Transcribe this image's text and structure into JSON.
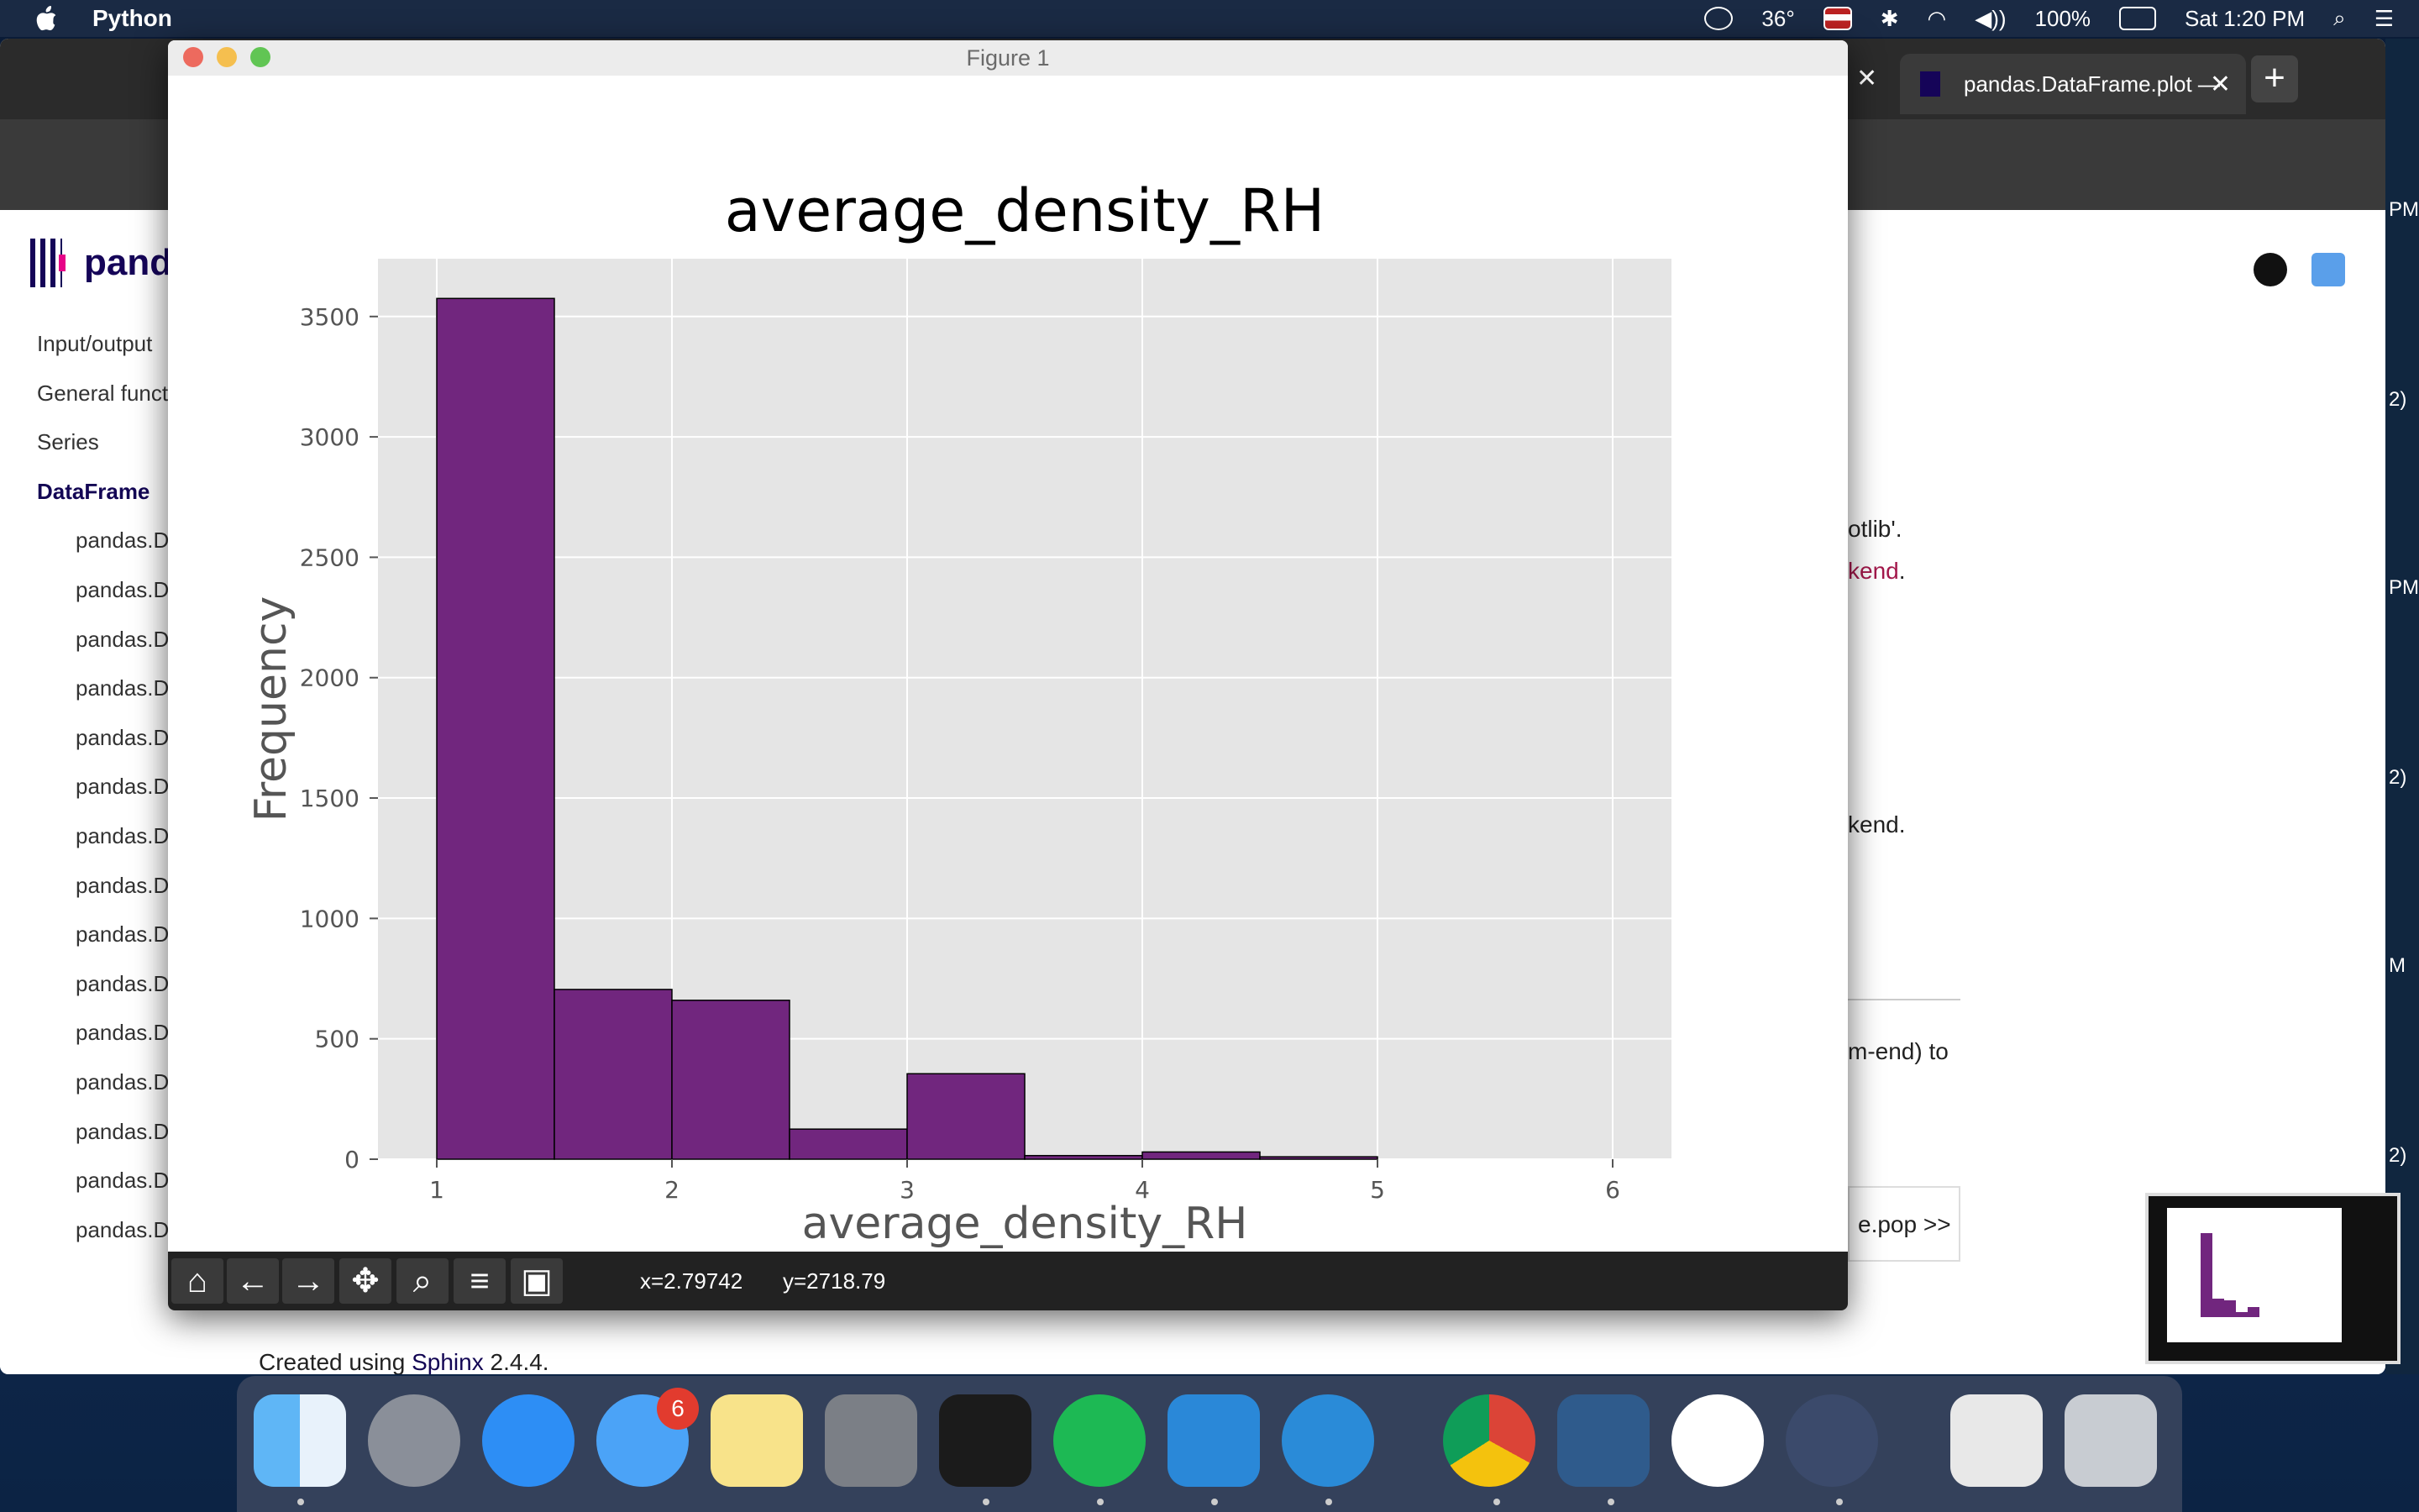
{
  "menubar": {
    "app_name": "Python",
    "temperature": "36°",
    "battery": "100%",
    "clock": "Sat 1:20 PM"
  },
  "browser": {
    "tab_title": "pandas.DataFrame.plot —",
    "logo_text": "pand",
    "sidebar": {
      "items": [
        "Input/output",
        "General funct",
        "Series",
        "DataFrame"
      ],
      "sub_items": [
        "pandas.D",
        "pandas.D",
        "pandas.D",
        "pandas.D",
        "pandas.D",
        "pandas.D",
        "pandas.D",
        "pandas.D",
        "pandas.D",
        "pandas.D",
        "pandas.D",
        "pandas.D",
        "pandas.D",
        "pandas.D",
        "pandas.D"
      ]
    },
    "right_snippets": {
      "s1": "otlib'.",
      "s2": "kend",
      "s2_tail": ".",
      "s3": "kend.",
      "s4": "m-end) to",
      "pop_link": "e.pop >>"
    },
    "edge_labels": [
      "PM",
      "2)",
      "PM",
      "2)",
      "M",
      "2)"
    ],
    "footer": {
      "prefix": "Created using ",
      "link": "Sphinx",
      "suffix": " 2.4.4."
    }
  },
  "figure": {
    "window_title": "Figure 1",
    "toolbar": {
      "x_readout": "x=2.79742",
      "y_readout": "y=2718.79"
    }
  },
  "chart_data": {
    "type": "bar",
    "title": "average_density_RH",
    "xlabel": "average_density_RH",
    "ylabel": "Frequency",
    "bins": [
      {
        "x0": 1.0,
        "x1": 1.5,
        "count": 3575
      },
      {
        "x0": 1.5,
        "x1": 2.0,
        "count": 705
      },
      {
        "x0": 2.0,
        "x1": 2.5,
        "count": 660
      },
      {
        "x0": 2.5,
        "x1": 3.0,
        "count": 125
      },
      {
        "x0": 3.0,
        "x1": 3.5,
        "count": 355
      },
      {
        "x0": 3.5,
        "x1": 4.0,
        "count": 15
      },
      {
        "x0": 4.0,
        "x1": 4.5,
        "count": 30
      },
      {
        "x0": 4.5,
        "x1": 5.0,
        "count": 10
      }
    ],
    "xlim": [
      0.75,
      6.25
    ],
    "ylim": [
      0,
      3740
    ],
    "xticks": [
      1,
      2,
      3,
      4,
      5,
      6
    ],
    "yticks": [
      0,
      500,
      1000,
      1500,
      2000,
      2500,
      3000,
      3500
    ],
    "grid": true,
    "bar_color": "#71267e",
    "edge_color": "#000000",
    "plot_background": "#e5e5e5"
  },
  "dock": {
    "messages_badge": "6"
  }
}
